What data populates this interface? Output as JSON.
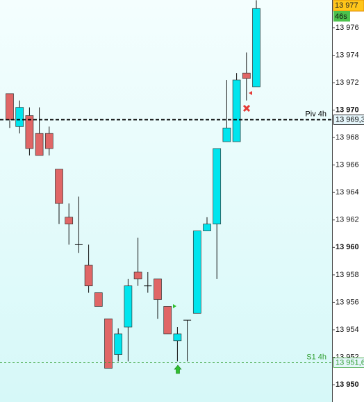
{
  "chart_data": {
    "type": "candlestick",
    "candles": {
      "open": [
        13971.2,
        13968.8,
        13969.6,
        13968.3,
        13968.3,
        13965.7,
        13962.2,
        13960.2,
        13958.7,
        13956.7,
        13954.8,
        13952.2,
        13954.2,
        13958.2,
        13957.2,
        13957.7,
        13955.7,
        13953.2,
        13954.7,
        13955.2,
        13961.2,
        13961.7,
        13967.7,
        13967.7,
        13972.7,
        13971.7
      ],
      "high": [
        13971.2,
        13970.7,
        13970.2,
        13970.2,
        13968.8,
        13965.7,
        13963.2,
        13963.7,
        13960.2,
        13956.7,
        13954.8,
        13954.1,
        13957.7,
        13960.7,
        13958.2,
        13957.7,
        13955.7,
        13954.2,
        13954.7,
        13961.2,
        13962.2,
        13967.2,
        13972.2,
        13972.7,
        13974.2,
        13978.0
      ],
      "low": [
        13968.7,
        13968.3,
        13966.7,
        13966.7,
        13966.7,
        13961.7,
        13960.2,
        13959.6,
        13956.7,
        13955.7,
        13951.2,
        13951.7,
        13951.7,
        13957.2,
        13956.7,
        13954.8,
        13953.7,
        13951.7,
        13951.7,
        13955.2,
        13961.2,
        13957.7,
        13967.7,
        13967.7,
        13970.7,
        13971.7
      ],
      "close": [
        13969.3,
        13970.2,
        13967.2,
        13966.7,
        13967.2,
        13963.2,
        13961.7,
        13960.2,
        13957.2,
        13955.7,
        13951.2,
        13953.7,
        13957.2,
        13957.7,
        13957.2,
        13956.2,
        13953.7,
        13953.7,
        13954.7,
        13961.2,
        13961.7,
        13967.2,
        13968.7,
        13972.2,
        13972.3,
        13977.4
      ]
    },
    "up_color": "#00e5ee",
    "down_color": "#e06666",
    "ylim": [
      13948.74,
      13978.02
    ],
    "yticks": [
      {
        "value": 13950,
        "label": "13 950"
      },
      {
        "value": 13952,
        "label": "13 952"
      },
      {
        "value": 13954,
        "label": "13 954"
      },
      {
        "value": 13956,
        "label": "13 956"
      },
      {
        "value": 13958,
        "label": "13 958"
      },
      {
        "value": 13960,
        "label": "13 960"
      },
      {
        "value": 13962,
        "label": "13 962"
      },
      {
        "value": 13964,
        "label": "13 964"
      },
      {
        "value": 13966,
        "label": "13 966"
      },
      {
        "value": 13968,
        "label": "13 968"
      },
      {
        "value": 13970,
        "label": "13 970"
      },
      {
        "value": 13972,
        "label": "13 972"
      },
      {
        "value": 13974,
        "label": "13 974"
      },
      {
        "value": 13976,
        "label": "13 976"
      }
    ],
    "levels": [
      {
        "name": "Piv 4h",
        "value": 13969.3,
        "value_label": "13 969,3",
        "color": "#000000"
      },
      {
        "name": "S1 4h",
        "value": 13951.6,
        "value_label": "13 951,6",
        "color": "#2e9e2e"
      }
    ],
    "last_price": {
      "value": 13977.4,
      "label": "13 977"
    },
    "timer": "46s"
  }
}
